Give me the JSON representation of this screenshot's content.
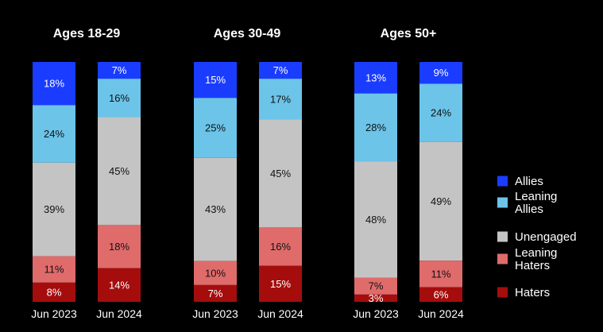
{
  "chart_data": {
    "type": "bar",
    "stacked": true,
    "normalized": true,
    "colors": {
      "Allies": "#1a3cff",
      "Leaning Allies": "#6cc4e8",
      "Unengaged": "#c4c4c4",
      "Leaning Haters": "#e06b6b",
      "Haters": "#a50d0d"
    },
    "legend": {
      "placement": "right",
      "entries": [
        {
          "name": "Allies",
          "lines": [
            "Allies"
          ]
        },
        {
          "name": "Leaning Allies",
          "lines": [
            "Leaning",
            "Allies"
          ]
        },
        {
          "name": "Unengaged",
          "lines": [
            "Unengaged"
          ]
        },
        {
          "name": "Leaning Haters",
          "lines": [
            "Leaning",
            "Haters"
          ]
        },
        {
          "name": "Haters",
          "lines": [
            "Haters"
          ]
        }
      ]
    },
    "groups": [
      {
        "title": "Ages 18-29",
        "bars": [
          {
            "category": "Jun 2023",
            "values": {
              "Allies": 18,
              "Leaning Allies": 24,
              "Unengaged": 39,
              "Leaning Haters": 11,
              "Haters": 8
            }
          },
          {
            "category": "Jun 2024",
            "values": {
              "Allies": 7,
              "Leaning Allies": 16,
              "Unengaged": 45,
              "Leaning Haters": 18,
              "Haters": 14
            }
          }
        ]
      },
      {
        "title": "Ages 30-49",
        "bars": [
          {
            "category": "Jun 2023",
            "values": {
              "Allies": 15,
              "Leaning Allies": 25,
              "Unengaged": 43,
              "Leaning Haters": 10,
              "Haters": 7
            }
          },
          {
            "category": "Jun 2024",
            "values": {
              "Allies": 7,
              "Leaning Allies": 17,
              "Unengaged": 45,
              "Leaning Haters": 16,
              "Haters": 15
            }
          }
        ]
      },
      {
        "title": "Ages 50+",
        "bars": [
          {
            "category": "Jun 2023",
            "values": {
              "Allies": 13,
              "Leaning Allies": 28,
              "Unengaged": 48,
              "Leaning Haters": 7,
              "Haters": 3
            }
          },
          {
            "category": "Jun 2024",
            "values": {
              "Allies": 9,
              "Leaning Allies": 24,
              "Unengaged": 49,
              "Leaning Haters": 11,
              "Haters": 6
            }
          }
        ]
      }
    ]
  }
}
